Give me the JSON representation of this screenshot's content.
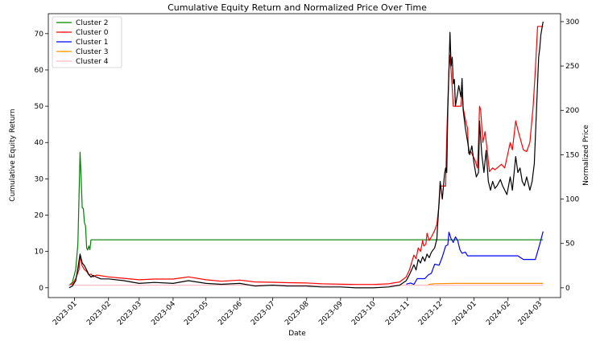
{
  "chart_data": {
    "type": "line",
    "title": "Cumulative Equity Return and Normalized Price Over Time",
    "xlabel": "Date",
    "ylabel_left": "Cumulative Equity Return",
    "ylabel_right": "Normalized Price",
    "x_ticks": [
      "2023-01",
      "2023-02",
      "2023-03",
      "2023-04",
      "2023-05",
      "2023-06",
      "2023-07",
      "2023-08",
      "2023-09",
      "2023-10",
      "2023-11",
      "2023-12",
      "2024-01",
      "2024-02",
      "2024-03"
    ],
    "y_left_ticks": [
      0,
      10,
      20,
      30,
      40,
      50,
      60,
      70
    ],
    "y_right_ticks": [
      0,
      50,
      100,
      150,
      200,
      250,
      300
    ],
    "xlim": [
      "2022-12-08",
      "2024-03-20"
    ],
    "ylim_left": [
      -2.7,
      75.5
    ],
    "ylim_right": [
      -11,
      309
    ],
    "legend_position": "top-left",
    "series": [
      {
        "name": "Cluster 2",
        "color": "#008000",
        "axis": "left",
        "points": [
          [
            "2022-12-27",
            0.6
          ],
          [
            "2022-12-30",
            1.5
          ],
          [
            "2023-01-02",
            5.0
          ],
          [
            "2023-01-04",
            12.0
          ],
          [
            "2023-01-05",
            25.0
          ],
          [
            "2023-01-06",
            37.3
          ],
          [
            "2023-01-07",
            30.0
          ],
          [
            "2023-01-08",
            22.0
          ],
          [
            "2023-01-09",
            21.8
          ],
          [
            "2023-01-10",
            18.0
          ],
          [
            "2023-01-11",
            17.0
          ],
          [
            "2023-01-12",
            11.0
          ],
          [
            "2023-01-13",
            10.4
          ],
          [
            "2023-01-14",
            11.5
          ],
          [
            "2023-01-15",
            10.5
          ],
          [
            "2023-01-16",
            13.2
          ],
          [
            "2024-03-04",
            13.2
          ]
        ]
      },
      {
        "name": "Cluster 0",
        "color": "#ff0000",
        "axis": "left",
        "points": [
          [
            "2022-12-27",
            0.6
          ],
          [
            "2022-12-30",
            1.0
          ],
          [
            "2023-01-02",
            2.5
          ],
          [
            "2023-01-05",
            5.0
          ],
          [
            "2023-01-06",
            8.8
          ],
          [
            "2023-01-08",
            6.0
          ],
          [
            "2023-01-10",
            5.0
          ],
          [
            "2023-01-12",
            4.5
          ],
          [
            "2023-01-14",
            3.5
          ],
          [
            "2023-01-16",
            3.8
          ],
          [
            "2023-01-18",
            3.0
          ],
          [
            "2023-01-21",
            3.5
          ],
          [
            "2023-01-25",
            3.3
          ],
          [
            "2023-02-01",
            3.0
          ],
          [
            "2023-02-15",
            2.6
          ],
          [
            "2023-03-01",
            2.2
          ],
          [
            "2023-03-15",
            2.4
          ],
          [
            "2023-04-01",
            2.4
          ],
          [
            "2023-04-15",
            3.0
          ],
          [
            "2023-05-01",
            2.2
          ],
          [
            "2023-05-15",
            1.8
          ],
          [
            "2023-06-01",
            2.1
          ],
          [
            "2023-06-15",
            1.6
          ],
          [
            "2023-07-01",
            1.5
          ],
          [
            "2023-07-15",
            1.4
          ],
          [
            "2023-08-01",
            1.3
          ],
          [
            "2023-08-15",
            1.1
          ],
          [
            "2023-09-01",
            1.0
          ],
          [
            "2023-09-15",
            0.9
          ],
          [
            "2023-10-01",
            0.9
          ],
          [
            "2023-10-15",
            1.1
          ],
          [
            "2023-10-25",
            1.6
          ],
          [
            "2023-10-31",
            3.0
          ],
          [
            "2023-11-03",
            5.0
          ],
          [
            "2023-11-07",
            9.0
          ],
          [
            "2023-11-09",
            8.0
          ],
          [
            "2023-11-11",
            11.0
          ],
          [
            "2023-11-13",
            10.0
          ],
          [
            "2023-11-15",
            13.0
          ],
          [
            "2023-11-16",
            11.5
          ],
          [
            "2023-11-18",
            12.0
          ],
          [
            "2023-11-19",
            15.0
          ],
          [
            "2023-11-21",
            13.0
          ],
          [
            "2023-11-23",
            14.0
          ],
          [
            "2023-11-26",
            15.8
          ],
          [
            "2023-11-28",
            17.5
          ],
          [
            "2023-11-30",
            23.0
          ],
          [
            "2023-12-01",
            28.0
          ],
          [
            "2023-12-06",
            28.0
          ],
          [
            "2023-12-07",
            42.0
          ],
          [
            "2023-12-09",
            60.0
          ],
          [
            "2023-12-10",
            64.0
          ],
          [
            "2023-12-12",
            55.0
          ],
          [
            "2023-12-13",
            50.0
          ],
          [
            "2023-12-20",
            50.0
          ],
          [
            "2023-12-21",
            54.0
          ],
          [
            "2023-12-22",
            49.5
          ],
          [
            "2023-12-25",
            45.0
          ],
          [
            "2023-12-26",
            44.0
          ],
          [
            "2023-12-27",
            37.0
          ],
          [
            "2023-12-29",
            37.5
          ],
          [
            "2024-01-02",
            35.0
          ],
          [
            "2024-01-04",
            33.0
          ],
          [
            "2024-01-05",
            40.0
          ],
          [
            "2024-01-06",
            50.0
          ],
          [
            "2024-01-07",
            49.0
          ],
          [
            "2024-01-09",
            40.0
          ],
          [
            "2024-01-11",
            43.0
          ],
          [
            "2024-01-13",
            38.0
          ],
          [
            "2024-01-15",
            32.0
          ],
          [
            "2024-01-18",
            33.0
          ],
          [
            "2024-01-20",
            32.5
          ],
          [
            "2024-01-26",
            34.0
          ],
          [
            "2024-01-29",
            33.0
          ],
          [
            "2024-02-03",
            40.0
          ],
          [
            "2024-02-05",
            38.0
          ],
          [
            "2024-02-08",
            46.0
          ],
          [
            "2024-02-10",
            43.5
          ],
          [
            "2024-02-15",
            38.0
          ],
          [
            "2024-02-18",
            37.5
          ],
          [
            "2024-02-21",
            40.0
          ],
          [
            "2024-02-24",
            50.0
          ],
          [
            "2024-02-26",
            60.0
          ],
          [
            "2024-02-28",
            72.0
          ],
          [
            "2024-03-04",
            72.0
          ]
        ]
      },
      {
        "name": "Cluster 1",
        "color": "#0000ff",
        "axis": "left",
        "points": [
          [
            "2023-10-31",
            1.0
          ],
          [
            "2023-11-04",
            1.3
          ],
          [
            "2023-11-07",
            0.9
          ],
          [
            "2023-11-10",
            2.5
          ],
          [
            "2023-11-13",
            2.5
          ],
          [
            "2023-11-17",
            2.5
          ],
          [
            "2023-11-20",
            3.5
          ],
          [
            "2023-11-23",
            4.0
          ],
          [
            "2023-11-26",
            6.5
          ],
          [
            "2023-11-30",
            6.2
          ],
          [
            "2023-12-03",
            8.5
          ],
          [
            "2023-12-06",
            11.5
          ],
          [
            "2023-12-08",
            11.8
          ],
          [
            "2023-12-09",
            15.3
          ],
          [
            "2023-12-11",
            13.5
          ],
          [
            "2023-12-13",
            12.5
          ],
          [
            "2023-12-15",
            14.0
          ],
          [
            "2023-12-17",
            13.0
          ],
          [
            "2023-12-19",
            10.5
          ],
          [
            "2023-12-21",
            9.5
          ],
          [
            "2023-12-24",
            9.8
          ],
          [
            "2023-12-26",
            8.8
          ],
          [
            "2024-02-10",
            8.8
          ],
          [
            "2024-02-15",
            7.8
          ],
          [
            "2024-02-26",
            7.8
          ],
          [
            "2024-03-01",
            12.0
          ],
          [
            "2024-03-04",
            15.5
          ]
        ]
      },
      {
        "name": "Cluster 3",
        "color": "#ff8c00",
        "axis": "left",
        "points": [
          [
            "2023-11-20",
            0.9
          ],
          [
            "2023-11-25",
            1.1
          ],
          [
            "2023-12-15",
            1.2
          ],
          [
            "2024-03-04",
            1.2
          ]
        ]
      },
      {
        "name": "Cluster 4",
        "color": "#ffb6c1",
        "axis": "left",
        "points": [
          [
            "2022-12-27",
            0.7
          ],
          [
            "2024-03-04",
            0.7
          ]
        ]
      },
      {
        "name": "",
        "color": "#000000",
        "axis": "right",
        "points": [
          [
            "2022-12-27",
            0
          ],
          [
            "2022-12-30",
            2
          ],
          [
            "2023-01-02",
            8
          ],
          [
            "2023-01-04",
            22
          ],
          [
            "2023-01-06",
            38
          ],
          [
            "2023-01-08",
            28
          ],
          [
            "2023-01-10",
            25
          ],
          [
            "2023-01-12",
            20
          ],
          [
            "2023-01-14",
            15
          ],
          [
            "2023-01-16",
            12
          ],
          [
            "2023-01-18",
            14
          ],
          [
            "2023-01-21",
            12
          ],
          [
            "2023-01-25",
            10
          ],
          [
            "2023-02-01",
            10
          ],
          [
            "2023-02-15",
            8
          ],
          [
            "2023-03-01",
            5
          ],
          [
            "2023-03-15",
            6
          ],
          [
            "2023-04-01",
            5
          ],
          [
            "2023-04-15",
            8
          ],
          [
            "2023-05-01",
            5
          ],
          [
            "2023-05-15",
            4
          ],
          [
            "2023-06-01",
            5
          ],
          [
            "2023-06-15",
            2
          ],
          [
            "2023-07-01",
            3
          ],
          [
            "2023-07-15",
            2
          ],
          [
            "2023-08-01",
            2
          ],
          [
            "2023-08-15",
            1
          ],
          [
            "2023-09-01",
            1
          ],
          [
            "2023-09-15",
            0
          ],
          [
            "2023-10-01",
            0
          ],
          [
            "2023-10-15",
            1
          ],
          [
            "2023-10-25",
            3
          ],
          [
            "2023-10-31",
            8
          ],
          [
            "2023-11-03",
            15
          ],
          [
            "2023-11-07",
            26
          ],
          [
            "2023-11-09",
            20
          ],
          [
            "2023-11-11",
            32
          ],
          [
            "2023-11-13",
            28
          ],
          [
            "2023-11-15",
            35
          ],
          [
            "2023-11-17",
            30
          ],
          [
            "2023-11-19",
            38
          ],
          [
            "2023-11-21",
            34
          ],
          [
            "2023-11-23",
            40
          ],
          [
            "2023-11-26",
            45
          ],
          [
            "2023-11-28",
            55
          ],
          [
            "2023-11-30",
            98
          ],
          [
            "2023-12-01",
            120
          ],
          [
            "2023-12-03",
            100
          ],
          [
            "2023-12-05",
            128
          ],
          [
            "2023-12-06",
            135
          ],
          [
            "2023-12-07",
            130
          ],
          [
            "2023-12-08",
            200
          ],
          [
            "2023-12-09",
            245
          ],
          [
            "2023-12-10",
            288
          ],
          [
            "2023-12-11",
            250
          ],
          [
            "2023-12-12",
            260
          ],
          [
            "2023-12-13",
            230
          ],
          [
            "2023-12-14",
            235
          ],
          [
            "2023-12-15",
            205
          ],
          [
            "2023-12-17",
            220
          ],
          [
            "2023-12-18",
            228
          ],
          [
            "2023-12-20",
            215
          ],
          [
            "2023-12-21",
            236
          ],
          [
            "2023-12-22",
            200
          ],
          [
            "2023-12-24",
            180
          ],
          [
            "2023-12-26",
            165
          ],
          [
            "2023-12-28",
            150
          ],
          [
            "2023-12-30",
            160
          ],
          [
            "2024-01-01",
            140
          ],
          [
            "2024-01-03",
            125
          ],
          [
            "2024-01-05",
            130
          ],
          [
            "2024-01-06",
            188
          ],
          [
            "2024-01-08",
            150
          ],
          [
            "2024-01-10",
            130
          ],
          [
            "2024-01-12",
            155
          ],
          [
            "2024-01-14",
            120
          ],
          [
            "2024-01-16",
            110
          ],
          [
            "2024-01-18",
            120
          ],
          [
            "2024-01-20",
            112
          ],
          [
            "2024-01-22",
            115
          ],
          [
            "2024-01-25",
            122
          ],
          [
            "2024-01-27",
            115
          ],
          [
            "2024-01-29",
            110
          ],
          [
            "2024-01-31",
            105
          ],
          [
            "2024-02-03",
            125
          ],
          [
            "2024-02-05",
            110
          ],
          [
            "2024-02-08",
            148
          ],
          [
            "2024-02-10",
            130
          ],
          [
            "2024-02-12",
            135
          ],
          [
            "2024-02-14",
            120
          ],
          [
            "2024-02-16",
            115
          ],
          [
            "2024-02-18",
            125
          ],
          [
            "2024-02-21",
            110
          ],
          [
            "2024-02-23",
            120
          ],
          [
            "2024-02-25",
            140
          ],
          [
            "2024-02-27",
            200
          ],
          [
            "2024-02-29",
            260
          ],
          [
            "2024-03-01",
            270
          ],
          [
            "2024-03-02",
            285
          ],
          [
            "2024-03-04",
            300
          ]
        ]
      }
    ]
  }
}
